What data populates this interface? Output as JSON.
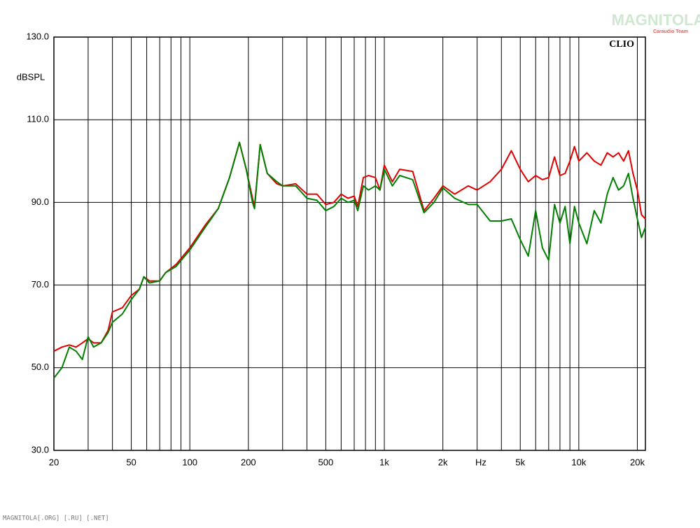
{
  "chart_data": {
    "type": "line",
    "ylabel": "dBSPL",
    "xlabel": "Hz",
    "brand": "CLIO",
    "watermark": "MAGNITOLA",
    "watermark_sub": "Caraudio Team",
    "footer": "MAGNITOLA[.ORG] [.RU] [.NET]",
    "log_x": true,
    "grid": true,
    "xlim": [
      20,
      22000
    ],
    "ylim": [
      30,
      130
    ],
    "xticks": [
      20,
      50,
      100,
      200,
      500,
      {
        "value": 1000,
        "label": "1k"
      },
      {
        "value": 2000,
        "label": "2k"
      },
      {
        "value": 5000,
        "label": "5k"
      },
      {
        "value": 10000,
        "label": "10k"
      },
      {
        "value": 20000,
        "label": "20k"
      }
    ],
    "xminor": [
      30,
      40,
      60,
      70,
      80,
      90,
      300,
      400,
      600,
      700,
      800,
      900,
      3000,
      4000,
      6000,
      7000,
      8000,
      9000
    ],
    "yticks": [
      {
        "value": 30,
        "label": "30.0"
      },
      {
        "value": 50,
        "label": "50.0"
      },
      {
        "value": 70,
        "label": "70.0"
      },
      {
        "value": 90,
        "label": "90.0"
      },
      {
        "value": 110,
        "label": "110.0"
      },
      {
        "value": 130,
        "label": "130.0"
      }
    ],
    "x": [
      20,
      22,
      24,
      26,
      28,
      30,
      32,
      35,
      38,
      40,
      45,
      50,
      55,
      58,
      62,
      70,
      75,
      85,
      100,
      120,
      140,
      160,
      180,
      195,
      210,
      215,
      230,
      250,
      280,
      300,
      350,
      400,
      450,
      500,
      550,
      600,
      650,
      700,
      730,
      780,
      830,
      900,
      950,
      1000,
      1100,
      1200,
      1400,
      1600,
      1800,
      2000,
      2300,
      2700,
      3000,
      3500,
      4000,
      4500,
      5000,
      5500,
      6000,
      6500,
      7000,
      7500,
      8000,
      8500,
      9000,
      9500,
      10000,
      11000,
      12000,
      13000,
      14000,
      15000,
      16000,
      17000,
      18000,
      19000,
      20000,
      21000,
      22000
    ],
    "series": [
      {
        "color": "#e00000",
        "values": [
          54,
          55,
          55.5,
          55,
          56,
          57,
          56,
          56,
          59,
          63.5,
          64.5,
          67.5,
          69,
          72,
          71,
          71,
          73,
          75,
          79,
          84.5,
          88.5,
          96,
          104.5,
          98,
          91,
          89,
          104,
          97,
          94.5,
          94,
          94.5,
          92,
          92,
          89.5,
          90,
          92,
          91,
          91.5,
          89,
          96,
          96.5,
          96,
          93,
          99,
          95,
          98,
          97.5,
          88,
          91,
          94,
          92,
          94,
          93,
          95,
          98,
          102.5,
          98,
          95,
          96.5,
          95.5,
          96,
          101,
          96.5,
          97,
          100,
          103.5,
          100,
          102,
          100,
          99,
          102,
          101,
          102,
          100,
          102.5,
          97,
          93,
          87,
          86
        ]
      },
      {
        "color": "#008000",
        "values": [
          47.5,
          50,
          55,
          54,
          52,
          57.5,
          55,
          56,
          58.5,
          61,
          63,
          66.5,
          69,
          72,
          70.5,
          71,
          73,
          74.5,
          78.5,
          84,
          88.5,
          96,
          104.5,
          98,
          90,
          88.5,
          104,
          97,
          95,
          94,
          94,
          91,
          90.5,
          88,
          89,
          91,
          90,
          90.5,
          88,
          94,
          93,
          94,
          93,
          98,
          94,
          96.5,
          95.5,
          87.5,
          90,
          93.5,
          91,
          89.5,
          89.5,
          85.5,
          85.5,
          86,
          81,
          77,
          88,
          79,
          76,
          89.5,
          85,
          89,
          80,
          89,
          85,
          80,
          88,
          85,
          92,
          96,
          93,
          94,
          97,
          91,
          86,
          81.5,
          84
        ]
      }
    ]
  }
}
